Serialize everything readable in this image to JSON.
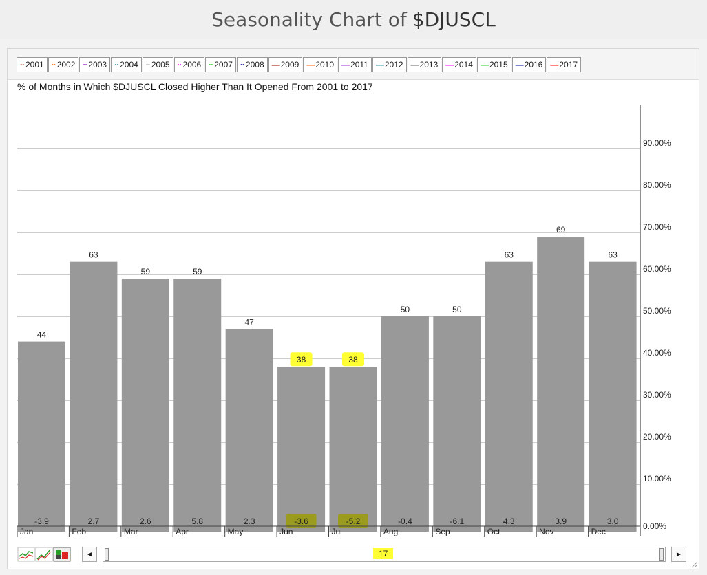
{
  "header": {
    "title_prefix": "Seasonality Chart of",
    "symbol": "$DJUSCL"
  },
  "legend": [
    {
      "label": "2001",
      "color": "#8b0000",
      "style": "dotted"
    },
    {
      "label": "2002",
      "color": "#ff6600",
      "style": "dotted"
    },
    {
      "label": "2003",
      "color": "#9933cc",
      "style": "dotted"
    },
    {
      "label": "2004",
      "color": "#339999",
      "style": "dotted"
    },
    {
      "label": "2005",
      "color": "#666666",
      "style": "dotted"
    },
    {
      "label": "2006",
      "color": "#ff00ff",
      "style": "dotted"
    },
    {
      "label": "2007",
      "color": "#33cc33",
      "style": "dotted"
    },
    {
      "label": "2008",
      "color": "#000099",
      "style": "dotted"
    },
    {
      "label": "2009",
      "color": "#8b0000",
      "style": "solid"
    },
    {
      "label": "2010",
      "color": "#ff6600",
      "style": "solid"
    },
    {
      "label": "2011",
      "color": "#9933cc",
      "style": "solid"
    },
    {
      "label": "2012",
      "color": "#339999",
      "style": "solid"
    },
    {
      "label": "2013",
      "color": "#666666",
      "style": "solid"
    },
    {
      "label": "2014",
      "color": "#ff00ff",
      "style": "solid"
    },
    {
      "label": "2015",
      "color": "#33cc33",
      "style": "solid"
    },
    {
      "label": "2016",
      "color": "#000099",
      "style": "solid"
    },
    {
      "label": "2017",
      "color": "#ff0000",
      "style": "solid"
    }
  ],
  "chart_data": {
    "type": "bar",
    "subtitle": "% of Months in Which $DJUSCL Closed Higher Than It Opened From 2001 to 2017",
    "categories": [
      "Jan",
      "Feb",
      "Mar",
      "Apr",
      "May",
      "Jun",
      "Jul",
      "Aug",
      "Sep",
      "Oct",
      "Nov",
      "Dec"
    ],
    "values": [
      44,
      63,
      59,
      59,
      47,
      38,
      38,
      50,
      50,
      63,
      69,
      63
    ],
    "value_labels": [
      "44",
      "63",
      "59",
      "59",
      "47",
      "38",
      "38",
      "50",
      "50",
      "63",
      "69",
      "63"
    ],
    "avg_returns": [
      "-3.9",
      "2.7",
      "2.6",
      "5.8",
      "2.3",
      "-3.6",
      "-5.2",
      "-0.4",
      "-6.1",
      "4.3",
      "3.9",
      "3.0"
    ],
    "highlighted": [
      "Jun",
      "Jul"
    ],
    "yticks": [
      "0.00%",
      "10.00%",
      "20.00%",
      "30.00%",
      "40.00%",
      "50.00%",
      "60.00%",
      "70.00%",
      "80.00%",
      "90.00%"
    ],
    "ylim": [
      0,
      100
    ],
    "ystep": 10,
    "grid": true,
    "bar_color": "#999999",
    "highlight_color": "#ffff33"
  },
  "scroller": {
    "value": "17",
    "left_arrow": "◄",
    "right_arrow": "►"
  }
}
